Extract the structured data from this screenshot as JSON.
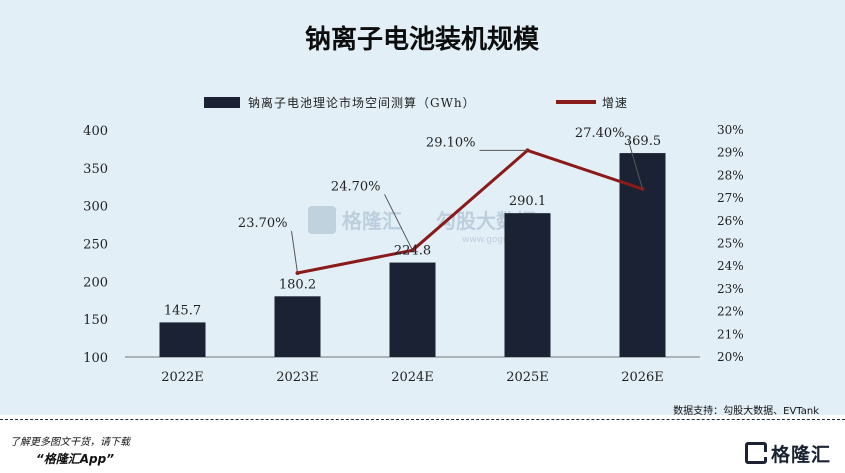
{
  "chart_data": {
    "type": "bar",
    "title": "钠离子电池装机规模",
    "categories": [
      "2022E",
      "2023E",
      "2024E",
      "2025E",
      "2026E"
    ],
    "series": [
      {
        "name": "钠离子电池理论市场空间测算（GWh）",
        "type": "bar",
        "axis": "left",
        "color": "#1b2233",
        "values": [
          145.7,
          180.2,
          224.8,
          290.1,
          369.5
        ],
        "labels": [
          "145.7",
          "180.2",
          "224.8",
          "290.1",
          "369.5"
        ]
      },
      {
        "name": "增速",
        "type": "line",
        "axis": "right",
        "color": "#8b1a1a",
        "values": [
          null,
          23.7,
          24.7,
          29.1,
          27.4
        ],
        "labels": [
          "",
          "23.70%",
          "24.70%",
          "29.10%",
          "27.40%"
        ]
      }
    ],
    "y_left": {
      "min": 100,
      "max": 400,
      "ticks": [
        "100",
        "150",
        "200",
        "250",
        "300",
        "350",
        "400"
      ]
    },
    "y_right": {
      "min": 20,
      "max": 30,
      "ticks": [
        "20%",
        "21%",
        "22%",
        "23%",
        "24%",
        "25%",
        "26%",
        "27%",
        "28%",
        "29%",
        "30%"
      ]
    },
    "grid": false,
    "legend": "top-center"
  },
  "watermark": {
    "brand": "格隆汇",
    "partner": "勾股大数据",
    "url": "www.gogudata.com"
  },
  "source": "数据支持：勾股大数据、EVTank",
  "footer": {
    "note": "了解更多图文干货，请下载",
    "app": "“格隆汇App”",
    "brand": "格隆汇"
  }
}
